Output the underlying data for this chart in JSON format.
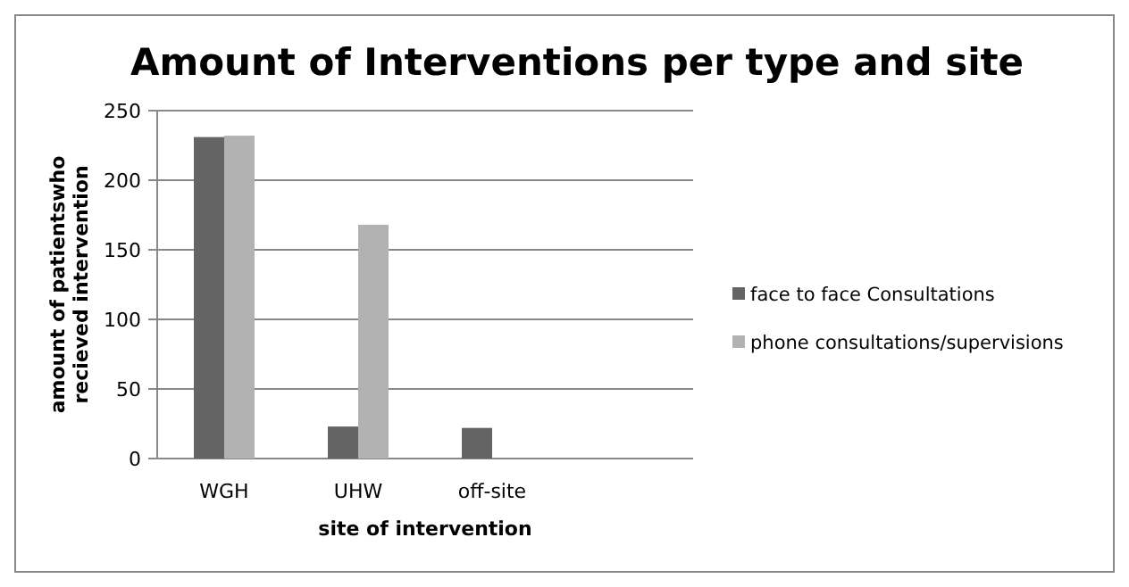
{
  "chart_data": {
    "type": "bar",
    "title": "Amount of Interventions per type and site",
    "xlabel": "site of intervention",
    "ylabel": "amount of patientswho recieved intervention",
    "categories": [
      "WGH",
      "UHW",
      "off-site",
      null
    ],
    "series": [
      {
        "name": "face to face Consultations",
        "color": "#646464",
        "values": [
          231,
          23,
          22,
          null
        ]
      },
      {
        "name": "phone consultations/supervisions",
        "color": "#b2b2b2",
        "values": [
          232,
          168,
          null,
          null
        ]
      }
    ],
    "ylim": [
      0,
      250
    ],
    "yticks": [
      0,
      50,
      100,
      150,
      200,
      250
    ],
    "grid": "y",
    "legend": "right"
  }
}
